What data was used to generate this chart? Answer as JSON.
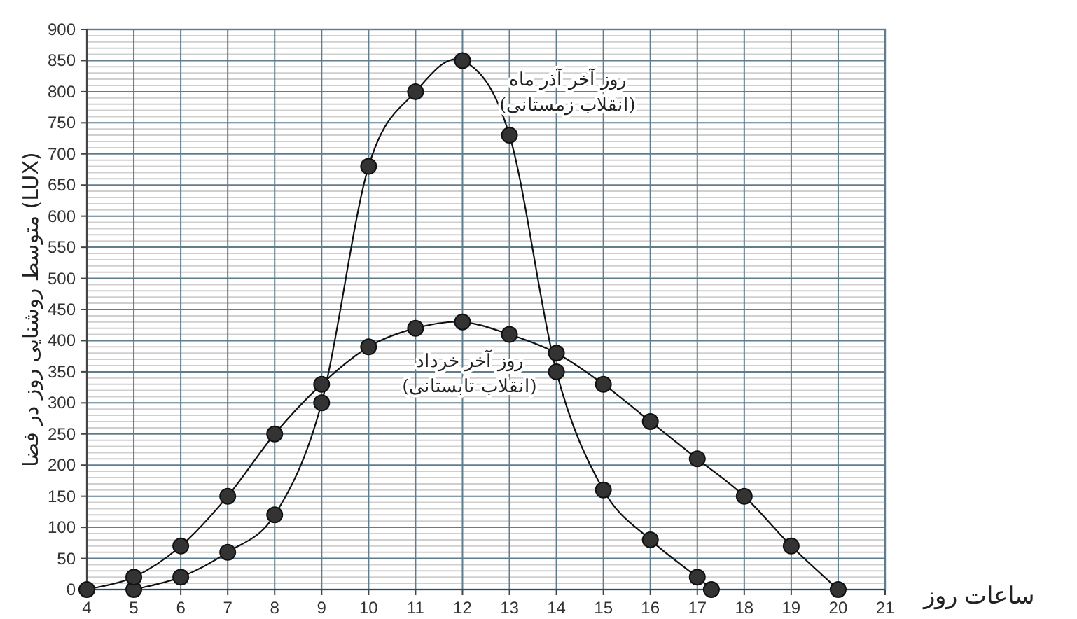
{
  "chart_data": {
    "type": "line",
    "xlabel": "ساعات روز",
    "ylabel": "متوسط روشنایی روز در فضا (LUX)",
    "xlim": [
      4,
      21
    ],
    "ylim": [
      0,
      900
    ],
    "xticks": [
      4,
      5,
      6,
      7,
      8,
      9,
      10,
      11,
      12,
      13,
      14,
      15,
      16,
      17,
      18,
      19,
      20,
      21
    ],
    "yticks": [
      0,
      50,
      100,
      150,
      200,
      250,
      300,
      350,
      400,
      450,
      500,
      550,
      600,
      650,
      700,
      750,
      800,
      850,
      900
    ],
    "grid": true,
    "marker": "circle",
    "line_style": "solid",
    "series": [
      {
        "color": "#333333",
        "x": [
          5,
          6,
          7,
          8,
          9,
          10,
          11,
          12,
          13,
          14,
          15,
          16,
          17,
          17.3
        ],
        "values": [
          0,
          20,
          60,
          120,
          300,
          680,
          800,
          850,
          730,
          350,
          160,
          80,
          20,
          0
        ]
      },
      {
        "color": "#333333",
        "x": [
          4,
          5,
          6,
          7,
          8,
          9,
          10,
          11,
          12,
          13,
          14,
          15,
          16,
          17,
          18,
          19,
          20
        ],
        "values": [
          0,
          20,
          70,
          150,
          250,
          330,
          390,
          420,
          430,
          410,
          380,
          330,
          270,
          210,
          150,
          70,
          0
        ]
      }
    ],
    "annotations": [
      "روز آخر آذر ماه\n(انقلاب زمستانی)",
      "روز آخر خرداد\n(انقلاب تابستانی)"
    ]
  }
}
